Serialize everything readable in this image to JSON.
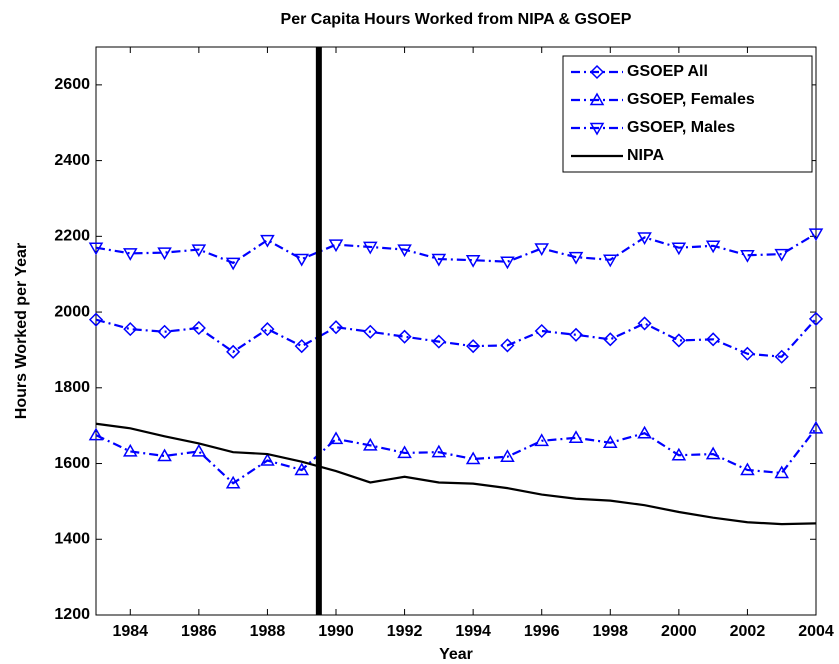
{
  "chart_data": {
    "type": "line",
    "title": "Per Capita Hours Worked from NIPA & GSOEP",
    "x_label": "Year",
    "y_label": "Hours Worked per Year",
    "x": [
      1983,
      1984,
      1985,
      1986,
      1987,
      1988,
      1989,
      1990,
      1991,
      1992,
      1993,
      1994,
      1995,
      1996,
      1997,
      1998,
      1999,
      2000,
      2001,
      2002,
      2003,
      2004
    ],
    "series": [
      {
        "name": "GSOEP All",
        "color": "#0000ff",
        "marker": "diamond",
        "linestyle": "dashdot",
        "values": [
          1980,
          1955,
          1948,
          1958,
          1895,
          1955,
          1910,
          1960,
          1948,
          1935,
          1922,
          1910,
          1912,
          1950,
          1940,
          1928,
          1970,
          1925,
          1928,
          1890,
          1882,
          1982
        ]
      },
      {
        "name": "GSOEP, Females",
        "color": "#0000ff",
        "marker": "triangle-up",
        "linestyle": "dashdot",
        "values": [
          1675,
          1632,
          1620,
          1632,
          1548,
          1608,
          1583,
          1665,
          1648,
          1628,
          1630,
          1612,
          1618,
          1660,
          1668,
          1655,
          1680,
          1622,
          1625,
          1583,
          1575,
          1693
        ]
      },
      {
        "name": "GSOEP, Males",
        "color": "#0000ff",
        "marker": "triangle-down",
        "linestyle": "dashdot",
        "values": [
          2170,
          2155,
          2157,
          2165,
          2130,
          2190,
          2140,
          2178,
          2172,
          2165,
          2140,
          2137,
          2133,
          2168,
          2145,
          2138,
          2197,
          2170,
          2175,
          2150,
          2153,
          2207
        ]
      },
      {
        "name": "NIPA",
        "color": "#000000",
        "marker": "none",
        "linestyle": "solid",
        "values": [
          1705,
          1693,
          1672,
          1653,
          1630,
          1625,
          1605,
          1580,
          1550,
          1565,
          1550,
          1547,
          1535,
          1518,
          1507,
          1502,
          1490,
          1472,
          1457,
          1445,
          1440,
          1442
        ]
      }
    ],
    "vline": 1989.5,
    "xlim": [
      1983,
      2004
    ],
    "xticks": [
      1984,
      1986,
      1988,
      1990,
      1992,
      1994,
      1996,
      1998,
      2000,
      2002,
      2004
    ],
    "ylim": [
      1200,
      2700
    ],
    "yticks": [
      1200,
      1400,
      1600,
      1800,
      2000,
      2200,
      2400,
      2600
    ],
    "grid": false,
    "legend": "top-right"
  }
}
